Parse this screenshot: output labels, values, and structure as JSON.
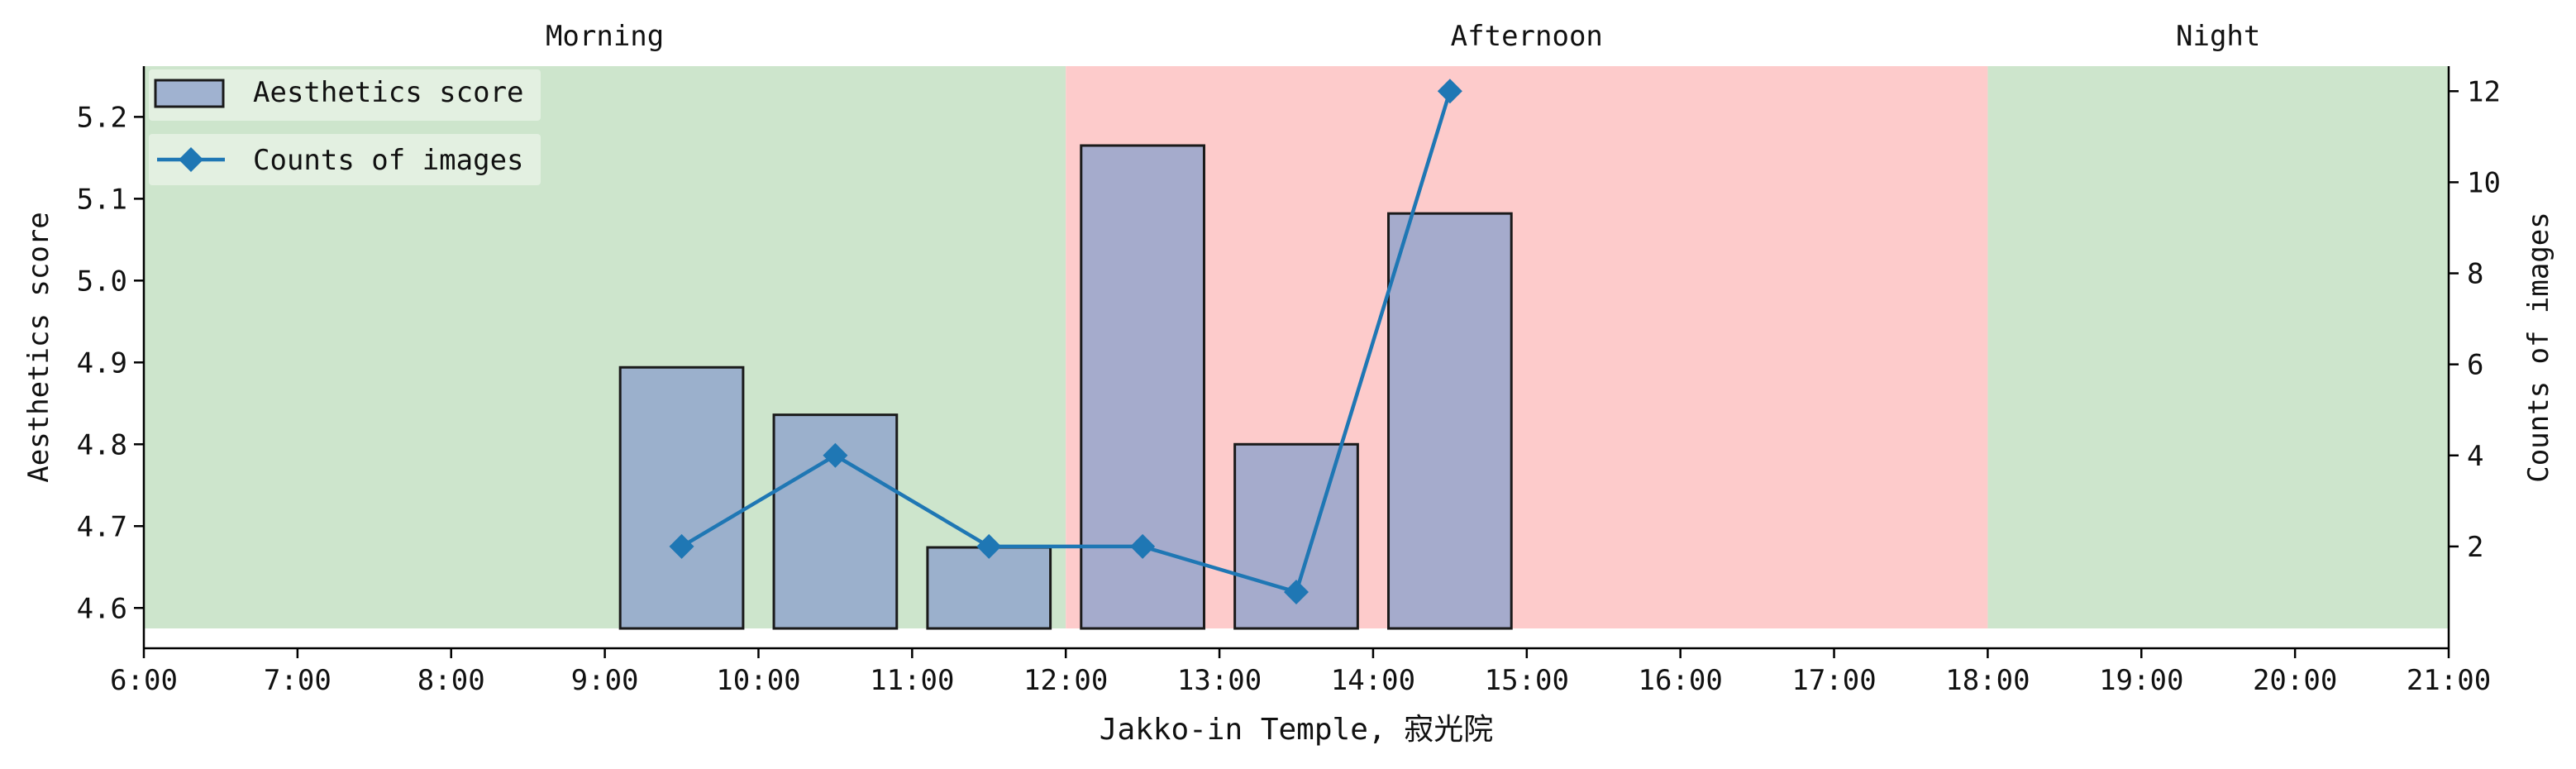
{
  "chart_data": {
    "type": "bar",
    "xlabel": "Jakko-in Temple, 寂光院",
    "ylabel_left": "Aesthetics score",
    "ylabel_right": "Counts of images",
    "x_ticks": [
      "6:00",
      "7:00",
      "8:00",
      "9:00",
      "10:00",
      "11:00",
      "12:00",
      "13:00",
      "14:00",
      "15:00",
      "16:00",
      "17:00",
      "18:00",
      "19:00",
      "20:00",
      "21:00"
    ],
    "x_range_hours": [
      6,
      21
    ],
    "y_left": {
      "range": [
        4.575,
        5.262
      ],
      "ticks": [
        "4.6",
        "4.7",
        "4.8",
        "4.9",
        "5.0",
        "5.1",
        "5.2"
      ]
    },
    "y_right": {
      "range": [
        0.2,
        12.55
      ],
      "ticks": [
        "2",
        "4",
        "6",
        "8",
        "10",
        "12"
      ]
    },
    "periods": [
      {
        "label": "Morning",
        "start_hour": 6,
        "end_hour": 12,
        "color": "#cde5cc"
      },
      {
        "label": "Afternoon",
        "start_hour": 12,
        "end_hour": 18,
        "color": "#fdcbcb"
      },
      {
        "label": "Night",
        "start_hour": 18,
        "end_hour": 21,
        "color": "#cde5cc"
      }
    ],
    "series": [
      {
        "name": "Aesthetics score",
        "kind": "bar",
        "axis": "left",
        "color": "#8fa3cc",
        "x_center_hour": [
          9.5,
          10.5,
          11.5,
          12.5,
          13.5,
          14.5
        ],
        "values": [
          4.894,
          4.836,
          4.674,
          5.165,
          4.8,
          5.082
        ]
      },
      {
        "name": "Counts of images",
        "kind": "line",
        "axis": "right",
        "color": "#1f77b4",
        "marker": "diamond",
        "x_hour": [
          9.5,
          10.5,
          11.5,
          12.5,
          13.5,
          14.5
        ],
        "values": [
          2,
          4,
          2,
          2,
          1,
          12
        ]
      }
    ],
    "legend_position": "upper-left",
    "grid": false
  }
}
